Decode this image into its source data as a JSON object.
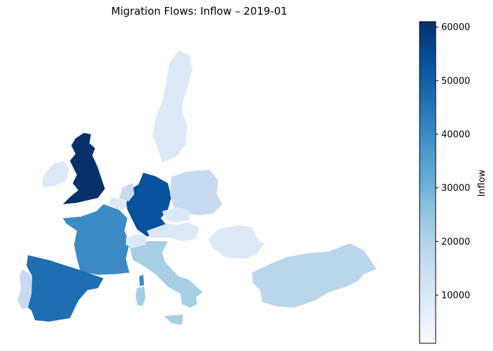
{
  "title": "Migration Flows: Inflow – 2019-01",
  "colorbar": {
    "label": "Inflow",
    "ticks": [
      "10000",
      "20000",
      "30000",
      "40000",
      "50000",
      "60000"
    ],
    "colormap": [
      "#f7fbff",
      "#deebf7",
      "#c6dbef",
      "#9ecae1",
      "#6baed6",
      "#4292c6",
      "#2171b5",
      "#08519c",
      "#08306b"
    ]
  },
  "regions": [
    {
      "name": "United Kingdom",
      "fill": "#08306b"
    },
    {
      "name": "Ireland",
      "fill": "#dbe9f6"
    },
    {
      "name": "Germany",
      "fill": "#08519c"
    },
    {
      "name": "France",
      "fill": "#3d8bc4"
    },
    {
      "name": "Spain",
      "fill": "#1f6eb3"
    },
    {
      "name": "Portugal",
      "fill": "#c6dbef"
    },
    {
      "name": "Italy",
      "fill": "#a6cee4"
    },
    {
      "name": "Sweden",
      "fill": "#dbe9f6"
    },
    {
      "name": "Poland",
      "fill": "#c6dbef"
    },
    {
      "name": "Romania",
      "fill": "#dbe9f6"
    },
    {
      "name": "Turkey",
      "fill": "#bad6eb"
    },
    {
      "name": "Netherlands",
      "fill": "#c6dbef"
    },
    {
      "name": "Belgium",
      "fill": "#dbe9f6"
    },
    {
      "name": "Czechia",
      "fill": "#dbe9f6"
    },
    {
      "name": "Austria",
      "fill": "#dbe9f6"
    },
    {
      "name": "Switzerland",
      "fill": "#dbe9f6"
    },
    {
      "name": "Hungary",
      "fill": "#dbe9f6"
    }
  ]
}
